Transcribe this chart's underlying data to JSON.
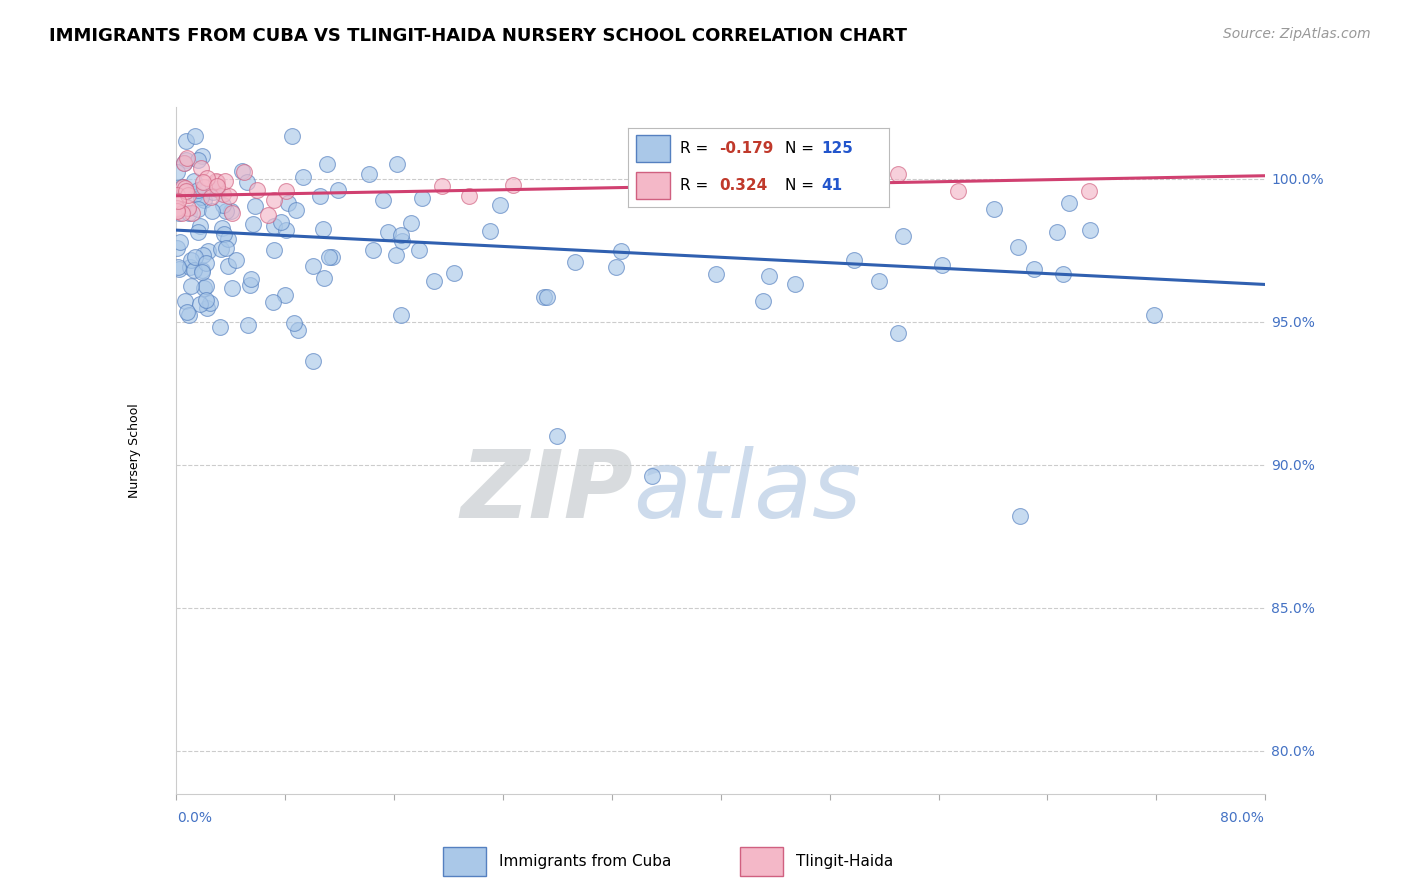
{
  "title": "IMMIGRANTS FROM CUBA VS TLINGIT-HAIDA NURSERY SCHOOL CORRELATION CHART",
  "source_text": "Source: ZipAtlas.com",
  "ylabel": "Nursery School",
  "y_tick_labels": [
    "100.0%",
    "95.0%",
    "90.0%",
    "85.0%",
    "80.0%"
  ],
  "y_tick_values": [
    1.0,
    0.95,
    0.9,
    0.85,
    0.8
  ],
  "xlim": [
    0.0,
    0.8
  ],
  "ylim": [
    0.785,
    1.025
  ],
  "r_cuba": -0.179,
  "n_cuba": 125,
  "r_tlingit": 0.324,
  "n_tlingit": 41,
  "color_cuba": "#aac8e8",
  "color_tlingit": "#f4b8c8",
  "edge_color_cuba": "#5580c0",
  "edge_color_tlingit": "#d06080",
  "line_color_cuba": "#3060b0",
  "line_color_tlingit": "#d04070",
  "legend_label_cuba": "Immigrants from Cuba",
  "legend_label_tlingit": "Tlingit-Haida",
  "title_fontsize": 13,
  "axis_label_fontsize": 9,
  "tick_fontsize": 10,
  "source_fontsize": 10
}
